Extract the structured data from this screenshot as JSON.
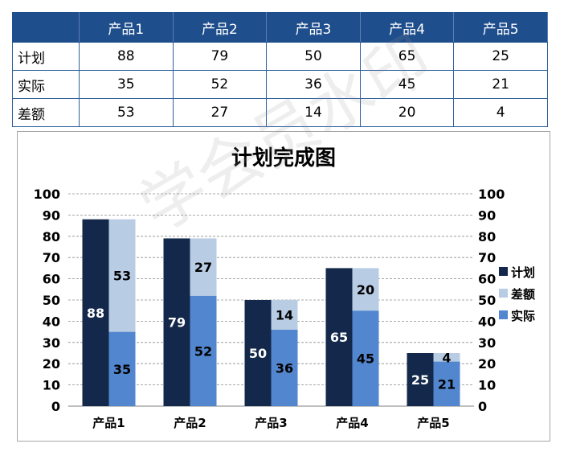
{
  "table": {
    "columns": [
      "",
      "产品1",
      "产品2",
      "产品3",
      "产品4",
      "产品5"
    ],
    "rows": [
      {
        "label": "计划",
        "values": [
          "88",
          "79",
          "50",
          "65",
          "25"
        ]
      },
      {
        "label": "实际",
        "values": [
          "35",
          "52",
          "36",
          "45",
          "21"
        ]
      },
      {
        "label": "差额",
        "values": [
          "53",
          "27",
          "14",
          "20",
          "4"
        ]
      }
    ]
  },
  "watermark": "学会员水印",
  "chart_data": {
    "type": "bar",
    "title": "计划完成图",
    "categories": [
      "产品1",
      "产品2",
      "产品3",
      "产品4",
      "产品5"
    ],
    "series": [
      {
        "name": "计划",
        "values": [
          88,
          79,
          50,
          65,
          25
        ],
        "color": "#13284a",
        "stack": "plan"
      },
      {
        "name": "实际",
        "values": [
          35,
          52,
          36,
          45,
          21
        ],
        "color": "#5286cf",
        "stack": "actual"
      },
      {
        "name": "差额",
        "values": [
          53,
          27,
          14,
          20,
          4
        ],
        "color": "#b8cce4",
        "stack": "actual"
      }
    ],
    "legend_order": [
      "计划",
      "差额",
      "实际"
    ],
    "ylim": [
      0,
      100
    ],
    "yticks": [
      0,
      10,
      20,
      30,
      40,
      50,
      60,
      70,
      80,
      90,
      100
    ],
    "secondary_axis": true,
    "grid": "dashed horizontal",
    "legend_position": "right"
  }
}
